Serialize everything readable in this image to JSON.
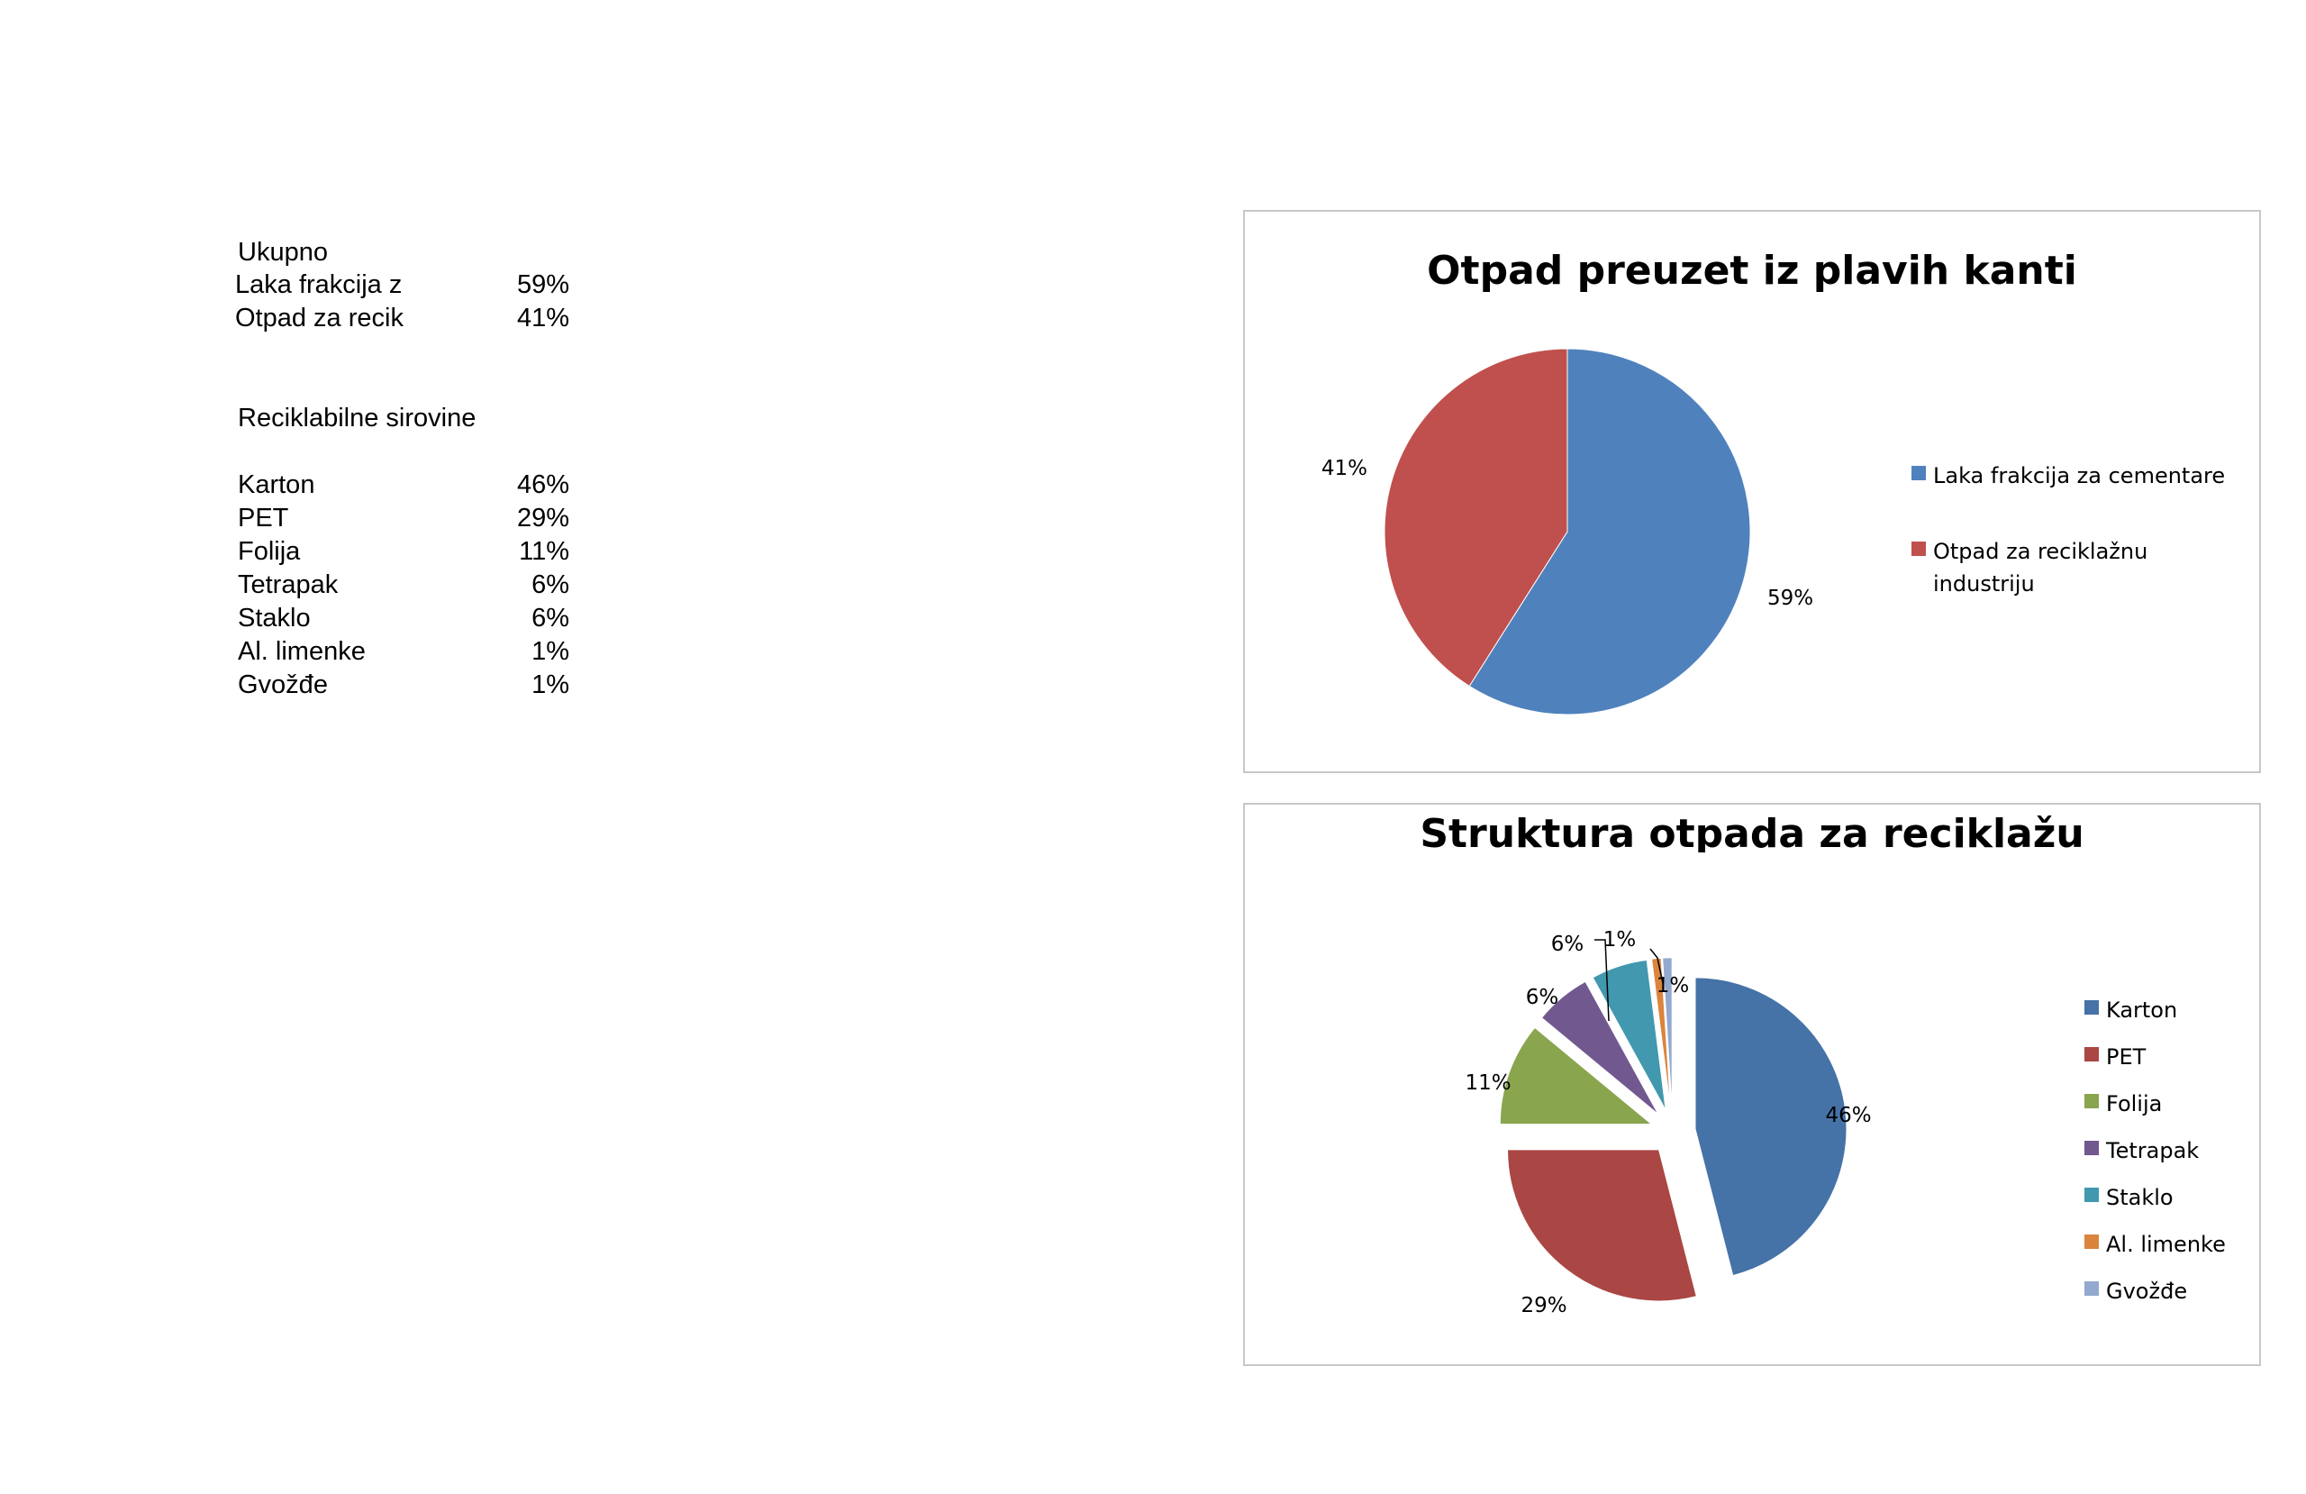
{
  "spreadsheet": {
    "summary": {
      "heading": "Ukupno",
      "rows": [
        {
          "label": "Laka frakcija z",
          "value": "59%"
        },
        {
          "label": "Otpad za recik",
          "value": "41%"
        }
      ]
    },
    "materials": {
      "heading": "Reciklabilne sirovine",
      "rows": [
        {
          "label": "Karton",
          "value": "46%"
        },
        {
          "label": "PET",
          "value": "29%"
        },
        {
          "label": "Folija",
          "value": "11%"
        },
        {
          "label": "Tetrapak",
          "value": "6%"
        },
        {
          "label": "Staklo",
          "value": "6%"
        },
        {
          "label": "Al. limenke",
          "value": "1%"
        },
        {
          "label": "Gvožđe",
          "value": "1%"
        }
      ]
    }
  },
  "chart_data": [
    {
      "type": "pie",
      "title": "Otpad preuzet iz plavih kanti",
      "categories": [
        "Laka frakcija za cementare",
        "Otpad za reciklažnu industriju"
      ],
      "values": [
        59,
        41
      ],
      "data_labels": [
        "59%",
        "41%"
      ],
      "colors": [
        "#4f81bd",
        "#c0504d"
      ],
      "legend": "right",
      "exploded": false
    },
    {
      "type": "pie",
      "title": "Struktura otpada za reciklažu",
      "categories": [
        "Karton",
        "PET",
        "Folija",
        "Tetrapak",
        "Staklo",
        "Al. limenke",
        "Gvožđe"
      ],
      "values": [
        46,
        29,
        11,
        6,
        6,
        1,
        1
      ],
      "data_labels": [
        "46%",
        "29%",
        "11%",
        "6%",
        "6%",
        "1%",
        "1%"
      ],
      "colors": [
        "#4572a7",
        "#aa4643",
        "#89a54e",
        "#71588f",
        "#4198af",
        "#db843d",
        "#93a9cf"
      ],
      "legend": "right",
      "exploded": true
    }
  ]
}
